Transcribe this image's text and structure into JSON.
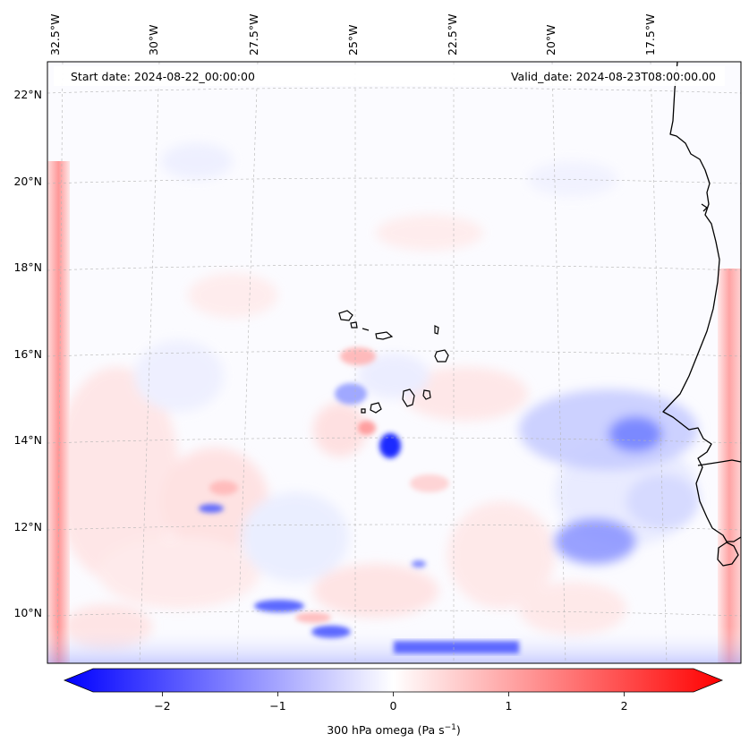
{
  "header": {
    "start_date": "Start date: 2024-08-22_00:00:00",
    "valid_date": "Valid_date: 2024-08-23T08:00:00.00"
  },
  "map": {
    "lon_labels": [
      "32.5°W",
      "30°W",
      "27.5°W",
      "25°W",
      "22.5°W",
      "20°W",
      "17.5°W"
    ],
    "lat_labels": [
      "22°N",
      "20°N",
      "18°N",
      "16°N",
      "14°N",
      "12°N",
      "10°N"
    ],
    "field_colors": {
      "strong_negative": "#0000ff",
      "weak_negative": "#c8d0ff",
      "neutral": "#ffffff",
      "weak_positive": "#ffd0d0",
      "strong_positive": "#ff0000"
    }
  },
  "colorbar": {
    "ticks": [
      "−2",
      "−1",
      "0",
      "1",
      "2"
    ],
    "tick_values": [
      -2,
      -1,
      0,
      1,
      2
    ],
    "range": [
      -2.6,
      2.6
    ],
    "label_main": "300 hPa omega (Pa s",
    "label_exp": "−1",
    "label_close": ")"
  }
}
